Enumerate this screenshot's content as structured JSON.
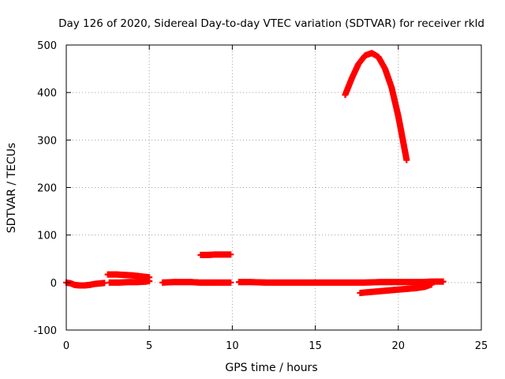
{
  "chart_data": {
    "type": "scatter",
    "title": "Day 126 of 2020, Sidereal Day-to-day VTEC variation (SDTVAR) for receiver rkld",
    "xlabel": "GPS time / hours",
    "ylabel": "SDTVAR / TECUs",
    "xlim": [
      0,
      25
    ],
    "ylim": [
      -100,
      500
    ],
    "xticks": [
      0,
      5,
      10,
      15,
      20,
      25
    ],
    "yticks": [
      -100,
      0,
      100,
      200,
      300,
      400,
      500
    ],
    "grid": true,
    "marker_color": "#ff0000",
    "series": [
      {
        "x": [
          0.0,
          0.3,
          0.5,
          0.8,
          1.1,
          1.4,
          1.7,
          2.0,
          2.3
        ],
        "y": [
          0,
          -2,
          -5,
          -6,
          -6,
          -5,
          -3,
          -2,
          -1
        ]
      },
      {
        "x": [
          2.5,
          3.0,
          3.5,
          4.0,
          4.5,
          5.0
        ],
        "y": [
          17,
          17,
          16,
          15,
          13,
          11
        ]
      },
      {
        "x": [
          2.6,
          3.2,
          3.8,
          4.3,
          4.8,
          5.0
        ],
        "y": [
          0,
          0,
          1,
          1,
          2,
          3
        ]
      },
      {
        "x": [
          5.8,
          6.5,
          7.0,
          7.5,
          8.0,
          8.5,
          9.0,
          9.5,
          9.9
        ],
        "y": [
          0,
          1,
          1,
          1,
          0,
          0,
          0,
          0,
          0
        ]
      },
      {
        "x": [
          8.1,
          8.5,
          9.0,
          9.5,
          9.9
        ],
        "y": [
          58,
          58,
          59,
          59,
          59
        ]
      },
      {
        "x": [
          10.4,
          11.0,
          12.0,
          13.0,
          14.0,
          15.0,
          16.0,
          17.0,
          18.0,
          19.0,
          20.0,
          21.0,
          21.5,
          22.0,
          22.7
        ],
        "y": [
          1,
          1,
          0,
          0,
          0,
          0,
          0,
          0,
          0,
          1,
          1,
          1,
          1,
          2,
          2
        ]
      },
      {
        "x": [
          17.7,
          18.3,
          19.0,
          19.6,
          20.3,
          21.0,
          21.6,
          22.0
        ],
        "y": [
          -22,
          -20,
          -18,
          -16,
          -14,
          -12,
          -9,
          -4
        ]
      },
      {
        "x": [
          16.8,
          17.2,
          17.6,
          18.0,
          18.4,
          18.8,
          19.2,
          19.6,
          20.0,
          20.3,
          20.5
        ],
        "y": [
          395,
          430,
          460,
          478,
          483,
          475,
          450,
          410,
          350,
          295,
          258
        ]
      }
    ]
  }
}
